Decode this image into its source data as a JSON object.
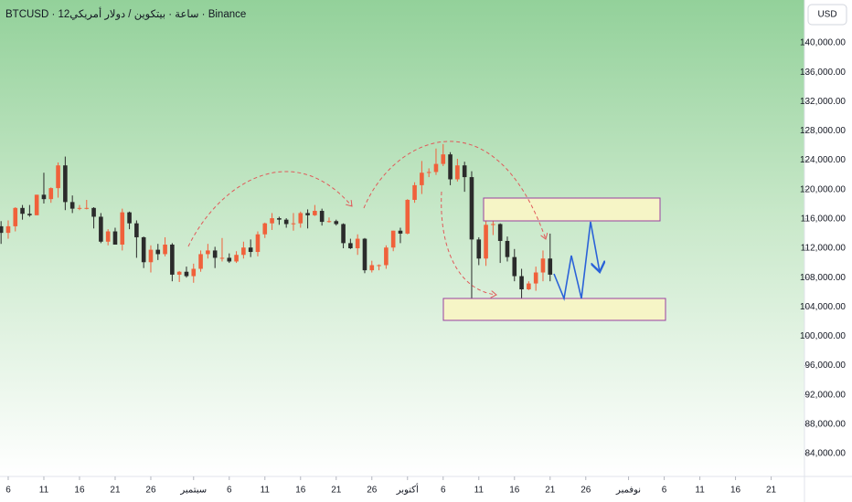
{
  "chart_data": {
    "type": "candlestick",
    "title": "BTCUSD · 12ساعة · بيتكوين / دولار أمريكي · Binance",
    "currency": "USD",
    "up_color": "#f0613b",
    "down_color": "#2b2b2b",
    "xlim": [
      -1.15,
      111.67
    ],
    "ylim": [
      80890,
      145850
    ],
    "xticks": [
      {
        "value": 0,
        "label": "6"
      },
      {
        "value": 5,
        "label": "11"
      },
      {
        "value": 10,
        "label": "16"
      },
      {
        "value": 15,
        "label": "21"
      },
      {
        "value": 20,
        "label": "26"
      },
      {
        "value": 26,
        "label": "سبتمبر"
      },
      {
        "value": 31,
        "label": "6"
      },
      {
        "value": 36,
        "label": "11"
      },
      {
        "value": 41,
        "label": "16"
      },
      {
        "value": 46,
        "label": "21"
      },
      {
        "value": 51,
        "label": "26"
      },
      {
        "value": 56,
        "label": "أكتوبر"
      },
      {
        "value": 61,
        "label": "6"
      },
      {
        "value": 66,
        "label": "11"
      },
      {
        "value": 71,
        "label": "16"
      },
      {
        "value": 76,
        "label": "21"
      },
      {
        "value": 81,
        "label": "26"
      },
      {
        "value": 87,
        "label": "نوفمبر"
      },
      {
        "value": 92,
        "label": "6"
      },
      {
        "value": 97,
        "label": "11"
      },
      {
        "value": 102,
        "label": "16"
      },
      {
        "value": 107,
        "label": "21"
      }
    ],
    "yticks": [
      {
        "value": 84000,
        "label": "84,000.00"
      },
      {
        "value": 88000,
        "label": "88,000.00"
      },
      {
        "value": 92000,
        "label": "92,000.00"
      },
      {
        "value": 96000,
        "label": "96,000.00"
      },
      {
        "value": 100000,
        "label": "100,000.00"
      },
      {
        "value": 104000,
        "label": "104,000.00"
      },
      {
        "value": 108000,
        "label": "108,000.00"
      },
      {
        "value": 112000,
        "label": "112,000.00"
      },
      {
        "value": 116000,
        "label": "116,000.00"
      },
      {
        "value": 120000,
        "label": "120,000.00"
      },
      {
        "value": 124000,
        "label": "124,000.00"
      },
      {
        "value": 128000,
        "label": "128,000.00"
      },
      {
        "value": 132000,
        "label": "132,000.00"
      },
      {
        "value": 136000,
        "label": "136,000.00"
      },
      {
        "value": 140000,
        "label": "140,000.00"
      }
    ],
    "x": [
      -1,
      0,
      1,
      2,
      3,
      4,
      5,
      6,
      7,
      8,
      9,
      10,
      11,
      12,
      13,
      14,
      15,
      16,
      17,
      18,
      19,
      20,
      21,
      22,
      23,
      24,
      25,
      26,
      27,
      28,
      29,
      30,
      31,
      32,
      33,
      34,
      35,
      36,
      37,
      38,
      39,
      40,
      41,
      42,
      43,
      44,
      45,
      46,
      47,
      48,
      49,
      50,
      51,
      52,
      53,
      54,
      55,
      56,
      57,
      58,
      59,
      60,
      61,
      62,
      63,
      64,
      65,
      66,
      67,
      68,
      69,
      70,
      71,
      72,
      73,
      74,
      75,
      76
    ],
    "open": [
      115000,
      114100,
      115000,
      117500,
      116700,
      116500,
      119300,
      118700,
      120200,
      123300,
      118300,
      117400,
      117500,
      117500,
      116300,
      112900,
      114300,
      112500,
      116900,
      115400,
      113500,
      110100,
      111800,
      111200,
      112500,
      108400,
      108800,
      108200,
      109200,
      111200,
      111700,
      110700,
      110700,
      110200,
      111100,
      112100,
      111500,
      113900,
      115400,
      116100,
      115900,
      115300,
      115400,
      116800,
      116500,
      117100,
      115600,
      115700,
      115300,
      112700,
      112000,
      113300,
      109000,
      109700,
      109700,
      112100,
      114400,
      114000,
      118600,
      120600,
      122300,
      122400,
      123500,
      124800,
      121400,
      123300,
      121700,
      113200,
      110600,
      115200,
      115300,
      113000,
      110800,
      108200,
      106400,
      107200,
      108700,
      110600
    ],
    "high": [
      115700,
      115800,
      117600,
      117900,
      117900,
      119300,
      122300,
      120300,
      123700,
      124500,
      119200,
      117900,
      118600,
      117600,
      116800,
      114600,
      114800,
      117400,
      117000,
      115800,
      113600,
      112400,
      112600,
      113500,
      112700,
      108900,
      109500,
      109900,
      111700,
      112600,
      112200,
      113400,
      111300,
      111600,
      112900,
      113200,
      114300,
      115500,
      116800,
      116300,
      116100,
      116800,
      117000,
      117300,
      117900,
      117400,
      116200,
      115900,
      115400,
      113300,
      113900,
      113400,
      110300,
      109800,
      112400,
      114400,
      114800,
      118700,
      121000,
      123900,
      122900,
      125600,
      126200,
      125100,
      124200,
      123800,
      122500,
      113500,
      115800,
      116000,
      115400,
      113600,
      111900,
      109200,
      107500,
      109500,
      111700,
      114000
    ],
    "low": [
      112600,
      113300,
      114300,
      115900,
      116300,
      116500,
      118100,
      118200,
      118900,
      117200,
      116800,
      117200,
      117300,
      114700,
      112700,
      112400,
      112600,
      111700,
      114600,
      110700,
      109300,
      108700,
      110400,
      110900,
      107500,
      107400,
      108000,
      107300,
      108800,
      110600,
      109300,
      110200,
      110000,
      110000,
      110600,
      110800,
      110900,
      113400,
      114500,
      115200,
      114800,
      114400,
      114800,
      114700,
      116400,
      115100,
      115500,
      115100,
      112000,
      111900,
      111100,
      108600,
      108700,
      109000,
      109200,
      111600,
      112700,
      113900,
      118200,
      119400,
      121700,
      122000,
      123200,
      120600,
      121100,
      119700,
      104600,
      109700,
      109600,
      113800,
      110000,
      110200,
      107500,
      103500,
      106300,
      106200,
      107500,
      107500
    ],
    "close": [
      114100,
      115000,
      117500,
      116700,
      116500,
      119300,
      118700,
      120200,
      123300,
      118300,
      117400,
      117500,
      117500,
      116300,
      112900,
      114300,
      112500,
      116900,
      115400,
      113500,
      110100,
      111800,
      111200,
      112500,
      108400,
      108800,
      108200,
      109200,
      111200,
      111700,
      110700,
      110700,
      110200,
      111100,
      112100,
      111500,
      113900,
      115400,
      116100,
      115900,
      115300,
      115400,
      116800,
      116500,
      117100,
      115600,
      115700,
      115300,
      112700,
      112000,
      113300,
      109000,
      109700,
      109700,
      112100,
      114400,
      114000,
      118600,
      120600,
      122300,
      122400,
      123500,
      124800,
      121400,
      123300,
      121700,
      113200,
      110600,
      115200,
      115300,
      113000,
      110800,
      108200,
      106400,
      107200,
      108700,
      110600,
      108400
    ]
  }
}
